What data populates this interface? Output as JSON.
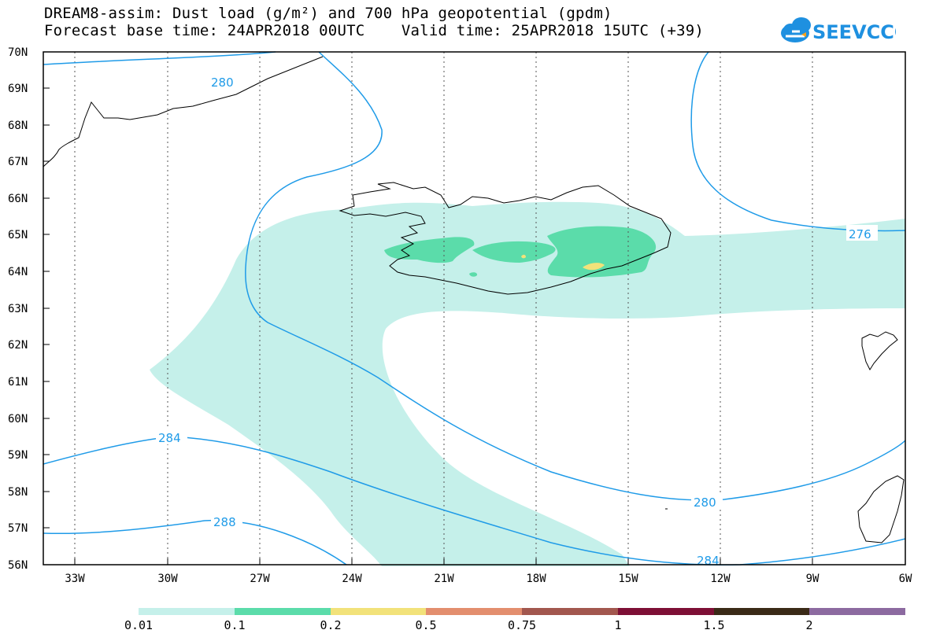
{
  "header": {
    "title_line1": "DREAM8-assim: Dust load (g/m²) and 700 hPa geopotential (gpdm)",
    "title_line2": "Forecast base time: 24APR2018 00UTC    Valid time: 25APR2018 15UTC (+39)"
  },
  "logo": {
    "text": "SEEVCCC",
    "icon": "cloud-icon",
    "color": "#1e90e0"
  },
  "map": {
    "lat_labels": [
      "70N",
      "69N",
      "68N",
      "67N",
      "66N",
      "65N",
      "64N",
      "63N",
      "62N",
      "61N",
      "60N",
      "59N",
      "58N",
      "57N",
      "56N"
    ],
    "lon_labels": [
      "33W",
      "30W",
      "27W",
      "24W",
      "21W",
      "18W",
      "15W",
      "12W",
      "9W",
      "6W"
    ],
    "contour_labels": [
      "280",
      "276",
      "284",
      "280",
      "288",
      "284"
    ],
    "contour_color": "#1f9be8"
  },
  "legend": {
    "bins": [
      {
        "color": "#c5f0ea"
      },
      {
        "color": "#5bdcaa"
      },
      {
        "color": "#f2e27a"
      },
      {
        "color": "#e38e6e"
      },
      {
        "color": "#a2574e"
      },
      {
        "color": "#7d0f35"
      },
      {
        "color": "#3a2a17"
      },
      {
        "color": "#8c6aa0"
      }
    ],
    "labels": [
      "0.01",
      "0.1",
      "0.2",
      "0.5",
      "0.75",
      "1",
      "1.5",
      "2"
    ]
  }
}
